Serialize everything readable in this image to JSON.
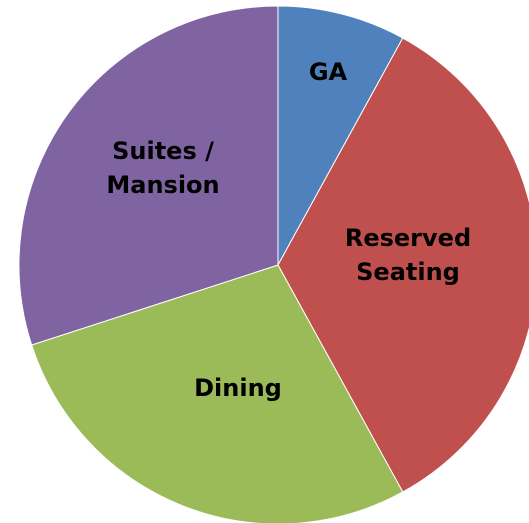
{
  "chart_data": {
    "type": "pie",
    "categories": [
      "GA",
      "Reserved Seating",
      "Dining",
      "Suites / Mansion"
    ],
    "values": [
      8,
      34,
      28,
      30
    ],
    "colors": [
      "#4f81bd",
      "#c0504d",
      "#9bbb59",
      "#8064a2"
    ]
  }
}
